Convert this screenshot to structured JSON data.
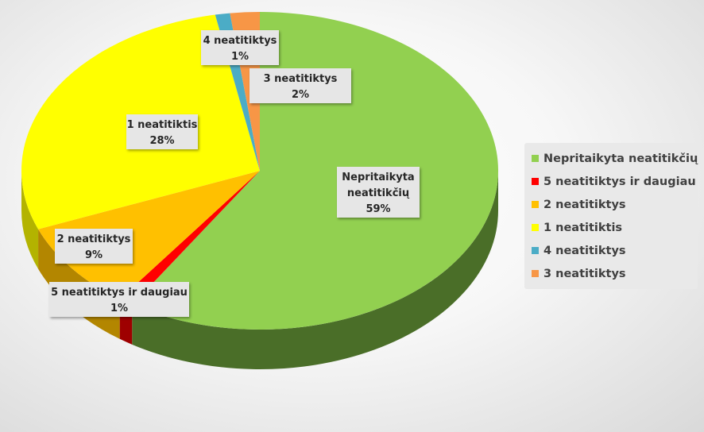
{
  "chart_data": {
    "type": "pie",
    "style": "3d",
    "start_angle_deg": 0,
    "direction": "clockwise",
    "legend_position": "right",
    "slices": [
      {
        "label": "Nepritaikyta neatitikčių",
        "label_lines": [
          "Nepritaikyta",
          "neatitikčių"
        ],
        "value": 59,
        "value_label": "59%",
        "color": "#92d050",
        "side_color": "#4a6e28"
      },
      {
        "label": "5 neatitiktys ir daugiau",
        "label_lines": [
          "5 neatitiktys ir daugiau"
        ],
        "value": 1,
        "value_label": "1%",
        "color": "#ff0000",
        "side_color": "#9e0000"
      },
      {
        "label": "2 neatitiktys",
        "label_lines": [
          "2 neatitiktys"
        ],
        "value": 9,
        "value_label": "9%",
        "color": "#ffc000",
        "side_color": "#b38600"
      },
      {
        "label": "1 neatitiktis",
        "label_lines": [
          "1 neatitiktis"
        ],
        "value": 28,
        "value_label": "28%",
        "color": "#ffff00",
        "side_color": "#b3b300"
      },
      {
        "label": "4 neatitiktys",
        "label_lines": [
          "4 neatitiktys"
        ],
        "value": 1,
        "value_label": "1%",
        "color": "#4bacc6",
        "side_color": "#2e6e80"
      },
      {
        "label": "3 neatitiktys",
        "label_lines": [
          "3 neatitiktys"
        ],
        "value": 2,
        "value_label": "2%",
        "color": "#f79646",
        "side_color": "#a5622a"
      }
    ]
  }
}
